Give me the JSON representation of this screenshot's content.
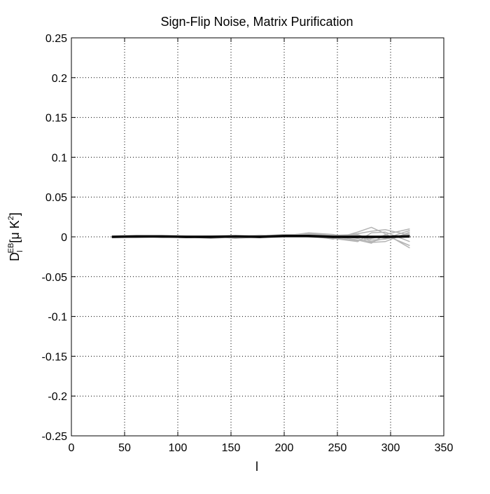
{
  "chart_data": {
    "type": "line",
    "title": "Sign-Flip Noise, Matrix Purification",
    "xlabel": "l",
    "ylabel": {
      "main": "D",
      "sub": "l",
      "sup": "EB",
      "unit_prefix": "[μ K",
      "unit_sup": "2",
      "unit_suffix": "]"
    },
    "xlim": [
      0,
      350
    ],
    "ylim": [
      -0.25,
      0.25
    ],
    "x_ticks": [
      0,
      50,
      100,
      150,
      200,
      250,
      300,
      350
    ],
    "x_tick_labels": [
      "0",
      "50",
      "100",
      "150",
      "200",
      "250",
      "300",
      "350"
    ],
    "y_ticks": [
      0.25,
      0.2,
      0.15,
      0.1,
      0.05,
      0,
      -0.05,
      -0.1,
      -0.15,
      -0.2,
      -0.25
    ],
    "y_tick_labels": [
      "0.25",
      "0.2",
      "0.15",
      "0.1",
      "0.05",
      "0",
      "-0.05",
      "-0.1",
      "-0.15",
      "-0.2",
      "-0.25"
    ],
    "grid": true,
    "x": [
      38,
      61,
      85,
      108,
      131,
      154,
      177,
      200,
      223,
      246,
      269,
      282,
      295,
      318
    ],
    "mean_series": {
      "color": "#000000",
      "values": [
        0.0,
        0.0005,
        0.0005,
        0.0,
        0.0,
        0.0005,
        0.0,
        0.001,
        0.001,
        0.0,
        0.0,
        0.0,
        0.0,
        0.0005
      ]
    },
    "realizations": {
      "color": "#b4b4b4",
      "series": [
        [
          0.0,
          0.001,
          0.0,
          -0.001,
          0.0,
          0.001,
          0.0,
          0.002,
          0.004,
          0.001,
          -0.004,
          -0.008,
          0.003,
          0.01
        ],
        [
          0.0,
          0.0,
          0.001,
          0.0,
          -0.002,
          0.0,
          0.001,
          0.003,
          0.002,
          -0.003,
          0.006,
          0.012,
          0.004,
          -0.014
        ],
        [
          0.0,
          -0.001,
          0.0,
          0.001,
          0.001,
          -0.002,
          0.0,
          0.001,
          0.005,
          0.003,
          -0.002,
          -0.007,
          -0.006,
          0.006
        ],
        [
          0.0,
          0.0,
          0.0,
          0.0,
          0.001,
          0.001,
          -0.001,
          0.002,
          0.003,
          0.0,
          0.004,
          0.007,
          0.009,
          0.002
        ],
        [
          0.0,
          0.001,
          -0.001,
          0.0,
          0.0,
          0.0,
          0.002,
          0.001,
          0.001,
          -0.001,
          -0.005,
          -0.002,
          0.002,
          -0.011
        ],
        [
          0.0,
          0.0,
          0.0,
          0.001,
          -0.001,
          0.001,
          0.0,
          0.002,
          0.004,
          0.002,
          0.003,
          -0.004,
          -0.003,
          0.004
        ],
        [
          0.0,
          0.001,
          0.0,
          -0.001,
          0.0,
          -0.001,
          0.001,
          0.002,
          0.0,
          -0.002,
          -0.006,
          0.005,
          0.006,
          -0.006
        ],
        [
          0.0,
          0.0,
          0.001,
          0.0,
          0.001,
          0.0,
          0.0,
          0.003,
          0.003,
          0.001,
          0.002,
          -0.006,
          -0.002,
          0.008
        ]
      ]
    }
  }
}
